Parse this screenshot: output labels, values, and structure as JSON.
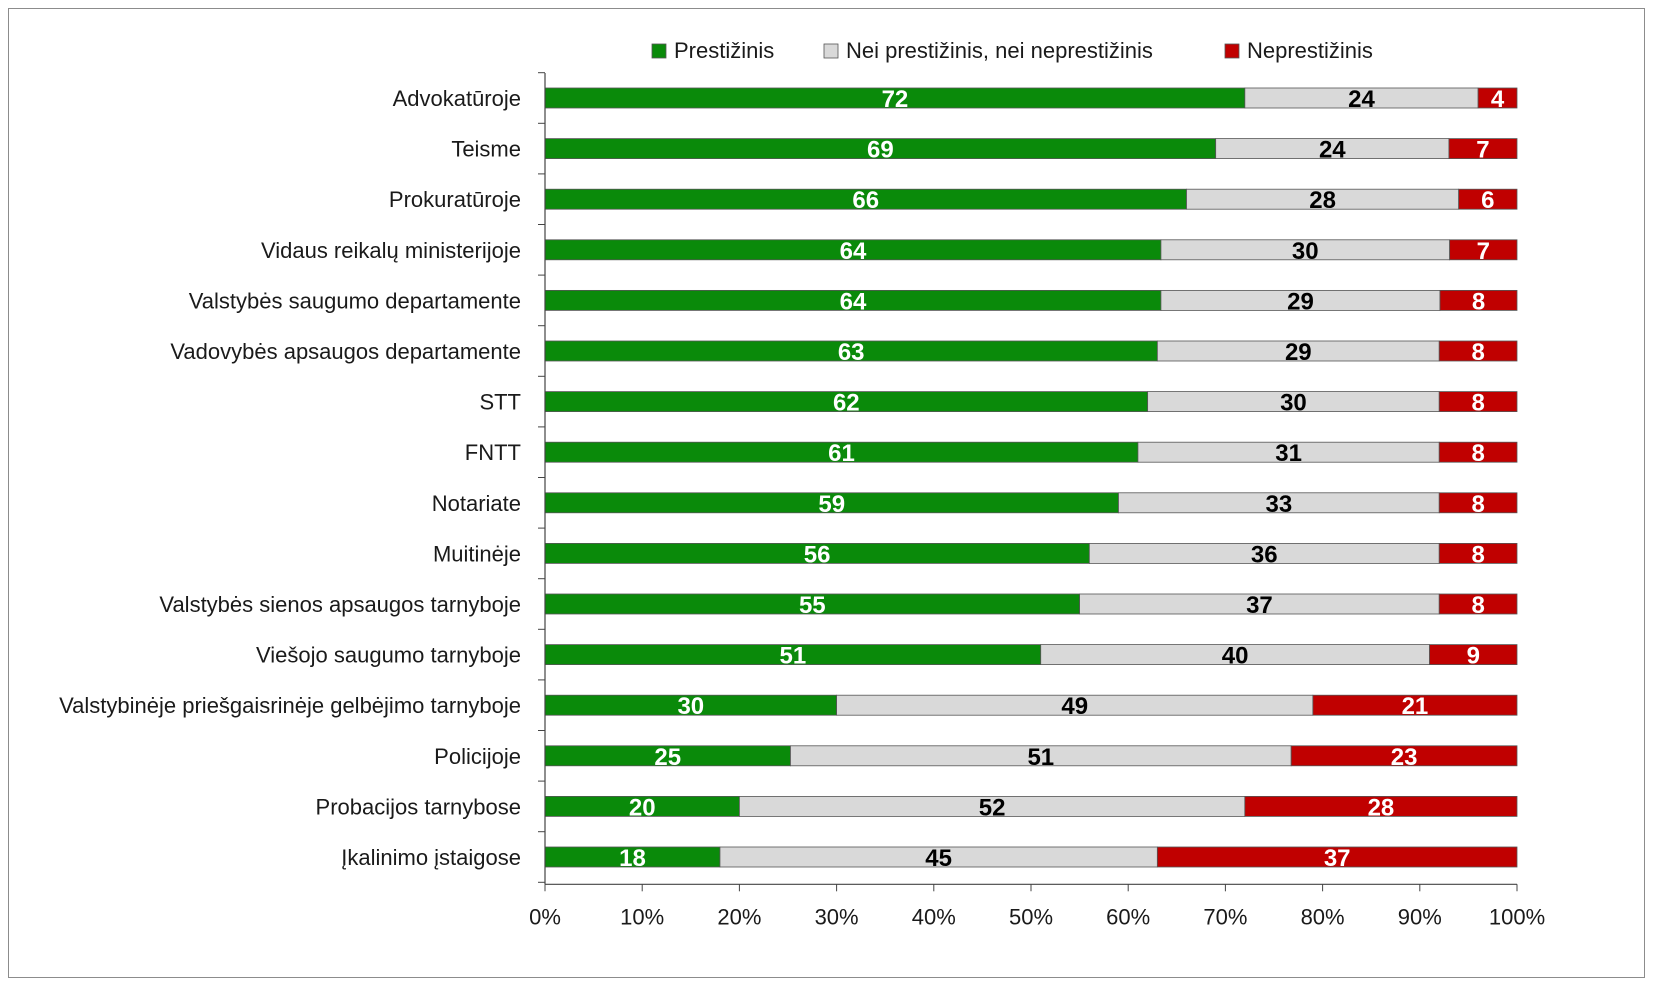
{
  "chart_data": {
    "type": "bar",
    "orientation": "horizontal",
    "stacked": "percent",
    "categories": [
      "Advokatūroje",
      "Teisme",
      "Prokuratūroje",
      "Vidaus reikalų ministerijoje",
      "Valstybės saugumo departamente",
      "Vadovybės apsaugos departamente",
      "STT",
      "FNTT",
      "Notariate",
      "Muitinėje",
      "Valstybės sienos apsaugos tarnyboje",
      "Viešojo saugumo tarnyboje",
      "Valstybinėje priešgaisrinėje gelbėjimo tarnyboje",
      "Policijoje",
      "Probacijos tarnybose",
      "Įkalinimo įstaigose"
    ],
    "series": [
      {
        "name": "Prestižinis",
        "color": "#0a8a0a",
        "label_color": "#ffffff",
        "values": [
          72,
          69,
          66,
          64,
          64,
          63,
          62,
          61,
          59,
          56,
          55,
          51,
          30,
          25,
          20,
          18
        ]
      },
      {
        "name": "Nei prestižinis, nei neprestižinis",
        "color": "#d9d9d9",
        "label_color": "#000000",
        "values": [
          24,
          24,
          28,
          30,
          29,
          29,
          30,
          31,
          33,
          36,
          37,
          40,
          49,
          51,
          52,
          45
        ]
      },
      {
        "name": "Neprestižinis",
        "color": "#c00000",
        "label_color": "#ffffff",
        "values": [
          4,
          7,
          6,
          7,
          8,
          8,
          8,
          8,
          8,
          8,
          8,
          9,
          21,
          23,
          28,
          37
        ]
      }
    ],
    "x_ticks": [
      "0%",
      "10%",
      "20%",
      "30%",
      "40%",
      "50%",
      "60%",
      "70%",
      "80%",
      "90%",
      "100%"
    ],
    "xlim": [
      0,
      100
    ],
    "legend_position": "top",
    "grid": false
  }
}
